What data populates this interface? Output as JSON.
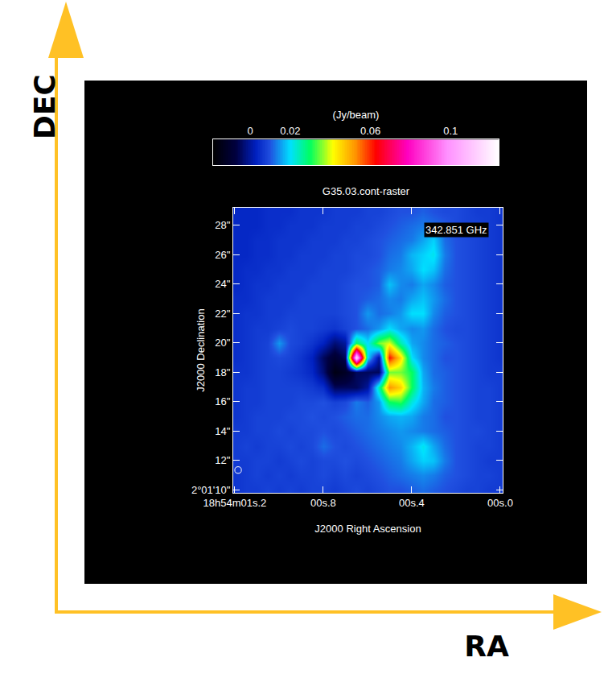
{
  "chart_data": {
    "type": "heatmap",
    "title": "G35.03.cont-raster",
    "x_label": "J2000 Right Ascension",
    "y_label": "J2000 Declination",
    "x": [
      1.2,
      1.15,
      1.1,
      1.05,
      1.0,
      0.95,
      0.9,
      0.85,
      0.8,
      0.75,
      0.7,
      0.65,
      0.6,
      0.55,
      0.5,
      0.45,
      0.4,
      0.35,
      0.3,
      0.25,
      0.2,
      0.15,
      0.1,
      0.05,
      0.0
    ],
    "y": [
      10,
      11,
      12,
      13,
      14,
      15,
      16,
      17,
      18,
      19,
      20,
      21,
      22,
      23,
      24,
      25,
      26,
      27,
      28,
      29
    ],
    "z": [
      [
        0.006,
        0.007,
        0.007,
        0.008,
        0.007,
        0.008,
        0.007,
        0.008,
        0.008,
        0.007,
        0.008,
        0.009,
        0.008,
        0.009,
        0.01,
        0.01,
        0.011,
        0.012,
        0.011,
        0.01,
        0.009,
        0.008,
        0.008,
        0.007,
        0.007
      ],
      [
        0.006,
        0.007,
        0.008,
        0.007,
        0.008,
        0.007,
        0.008,
        0.008,
        0.009,
        0.008,
        0.009,
        0.008,
        0.009,
        0.01,
        0.011,
        0.012,
        0.013,
        0.014,
        0.013,
        0.011,
        0.01,
        0.009,
        0.008,
        0.008,
        0.007
      ],
      [
        0.007,
        0.007,
        0.008,
        0.008,
        0.007,
        0.008,
        0.009,
        0.008,
        0.009,
        0.009,
        0.01,
        0.009,
        0.01,
        0.011,
        0.012,
        0.013,
        0.016,
        0.019,
        0.018,
        0.013,
        0.01,
        0.009,
        0.008,
        0.007,
        0.007
      ],
      [
        0.007,
        0.008,
        0.007,
        0.008,
        0.008,
        0.009,
        0.008,
        0.009,
        0.012,
        0.01,
        0.009,
        0.01,
        0.011,
        0.012,
        0.013,
        0.014,
        0.017,
        0.021,
        0.016,
        0.012,
        0.01,
        0.009,
        0.008,
        0.008,
        0.007
      ],
      [
        0.007,
        0.007,
        0.008,
        0.008,
        0.009,
        0.008,
        0.009,
        0.009,
        0.01,
        0.009,
        0.01,
        0.011,
        0.012,
        0.013,
        0.014,
        0.015,
        0.014,
        0.013,
        0.012,
        0.011,
        0.01,
        0.009,
        0.009,
        0.008,
        0.007
      ],
      [
        0.006,
        0.007,
        0.008,
        0.008,
        0.008,
        0.009,
        0.009,
        0.01,
        0.009,
        0.01,
        0.011,
        0.012,
        0.012,
        0.014,
        0.016,
        0.017,
        0.016,
        0.013,
        0.012,
        0.01,
        0.01,
        0.009,
        0.008,
        0.008,
        0.007
      ],
      [
        0.006,
        0.007,
        0.007,
        0.008,
        0.008,
        0.008,
        0.009,
        0.009,
        0.01,
        0.008,
        0.009,
        0.013,
        0.011,
        0.015,
        0.03,
        0.032,
        0.022,
        0.016,
        0.012,
        0.011,
        0.01,
        0.009,
        0.008,
        0.008,
        0.007
      ],
      [
        0.006,
        0.007,
        0.007,
        0.008,
        0.008,
        0.008,
        0.008,
        0.007,
        0.005,
        -0.005,
        -0.005,
        -0.005,
        0.0,
        0.025,
        0.052,
        0.046,
        0.03,
        0.017,
        0.013,
        0.011,
        0.01,
        0.009,
        0.008,
        0.008,
        0.007
      ],
      [
        0.006,
        0.006,
        0.007,
        0.008,
        0.008,
        0.007,
        0.006,
        0.004,
        -0.003,
        -0.015,
        -0.012,
        -0.005,
        -0.005,
        -0.005,
        0.035,
        0.035,
        0.03,
        0.016,
        0.012,
        0.011,
        0.01,
        0.009,
        0.008,
        0.007,
        0.007
      ],
      [
        0.005,
        0.006,
        0.007,
        0.008,
        0.009,
        0.008,
        0.006,
        0.003,
        -0.005,
        -0.01,
        -0.005,
        0.115,
        0.02,
        0.0,
        0.062,
        0.045,
        0.02,
        0.014,
        0.012,
        0.01,
        0.01,
        0.009,
        0.008,
        0.007,
        0.006
      ],
      [
        0.005,
        0.006,
        0.007,
        0.008,
        0.015,
        0.009,
        0.008,
        0.006,
        0.003,
        -0.003,
        0.0,
        0.03,
        0.02,
        0.035,
        0.04,
        0.025,
        0.016,
        0.014,
        0.012,
        0.011,
        0.01,
        0.009,
        0.008,
        0.007,
        0.006
      ],
      [
        0.005,
        0.006,
        0.007,
        0.007,
        0.008,
        0.009,
        0.008,
        0.008,
        0.007,
        0.006,
        0.008,
        0.01,
        0.012,
        0.015,
        0.02,
        0.016,
        0.014,
        0.015,
        0.012,
        0.01,
        0.009,
        0.009,
        0.008,
        0.007,
        0.006
      ],
      [
        0.005,
        0.006,
        0.006,
        0.007,
        0.007,
        0.008,
        0.008,
        0.008,
        0.008,
        0.008,
        0.009,
        0.01,
        0.015,
        0.012,
        0.013,
        0.015,
        0.02,
        0.02,
        0.014,
        0.011,
        0.01,
        0.009,
        0.008,
        0.007,
        0.006
      ],
      [
        0.005,
        0.005,
        0.006,
        0.007,
        0.007,
        0.007,
        0.008,
        0.008,
        0.008,
        0.008,
        0.009,
        0.01,
        0.011,
        0.012,
        0.014,
        0.013,
        0.016,
        0.018,
        0.015,
        0.012,
        0.01,
        0.009,
        0.008,
        0.007,
        0.006
      ],
      [
        0.004,
        0.005,
        0.006,
        0.006,
        0.007,
        0.007,
        0.007,
        0.008,
        0.008,
        0.008,
        0.009,
        0.01,
        0.01,
        0.011,
        0.018,
        0.014,
        0.013,
        0.016,
        0.014,
        0.011,
        0.01,
        0.009,
        0.008,
        0.007,
        0.006
      ],
      [
        0.004,
        0.005,
        0.005,
        0.006,
        0.006,
        0.007,
        0.007,
        0.007,
        0.008,
        0.008,
        0.008,
        0.009,
        0.01,
        0.011,
        0.013,
        0.014,
        0.016,
        0.02,
        0.018,
        0.012,
        0.01,
        0.009,
        0.008,
        0.007,
        0.006
      ],
      [
        0.004,
        0.004,
        0.005,
        0.005,
        0.006,
        0.006,
        0.007,
        0.007,
        0.007,
        0.008,
        0.008,
        0.009,
        0.009,
        0.01,
        0.012,
        0.013,
        0.017,
        0.019,
        0.021,
        0.013,
        0.01,
        0.009,
        0.008,
        0.007,
        0.006
      ],
      [
        0.004,
        0.004,
        0.005,
        0.005,
        0.006,
        0.006,
        0.006,
        0.007,
        0.007,
        0.007,
        0.008,
        0.008,
        0.009,
        0.01,
        0.011,
        0.012,
        0.013,
        0.016,
        0.019,
        0.012,
        0.01,
        0.009,
        0.008,
        0.007,
        0.006
      ],
      [
        0.004,
        0.004,
        0.004,
        0.005,
        0.005,
        0.006,
        0.006,
        0.006,
        0.007,
        0.007,
        0.007,
        0.008,
        0.008,
        0.009,
        0.01,
        0.011,
        0.012,
        0.013,
        0.012,
        0.011,
        0.009,
        0.008,
        0.008,
        0.007,
        0.006
      ],
      [
        0.004,
        0.004,
        0.004,
        0.005,
        0.005,
        0.005,
        0.006,
        0.006,
        0.006,
        0.007,
        0.007,
        0.007,
        0.008,
        0.008,
        0.009,
        0.01,
        0.01,
        0.011,
        0.01,
        0.009,
        0.009,
        0.008,
        0.007,
        0.007,
        0.006
      ]
    ],
    "xlim": [
      1.207,
      -0.011
    ],
    "ylim": [
      9.8,
      29.2
    ],
    "xticks": [
      {
        "value": 1.2,
        "label": "18h54m01s.2"
      },
      {
        "value": 0.8,
        "label": "00s.8"
      },
      {
        "value": 0.4,
        "label": "00s.4"
      },
      {
        "value": 0.0,
        "label": "00s.0"
      }
    ],
    "yticks": [
      {
        "value": 10,
        "label": "2°01'10\""
      },
      {
        "value": 12,
        "label": "12\""
      },
      {
        "value": 14,
        "label": "14\""
      },
      {
        "value": 16,
        "label": "16\""
      },
      {
        "value": 18,
        "label": "18\""
      },
      {
        "value": 20,
        "label": "20\""
      },
      {
        "value": 22,
        "label": "22\""
      },
      {
        "value": 24,
        "label": "24\""
      },
      {
        "value": 26,
        "label": "26\""
      },
      {
        "value": 28,
        "label": "28\""
      }
    ],
    "colorbar": {
      "title": "(Jy/beam)",
      "range": [
        -0.0185,
        0.124
      ],
      "ticks": [
        0,
        0.02,
        0.06,
        0.1
      ]
    },
    "annotations": [
      "342.851 GHz"
    ],
    "beam": {
      "ra": 1.185,
      "dec": 11.35,
      "major": 0.45,
      "minor": 0.45
    },
    "grid": false
  },
  "arrows": {
    "x": "RA",
    "y": "DEC"
  }
}
